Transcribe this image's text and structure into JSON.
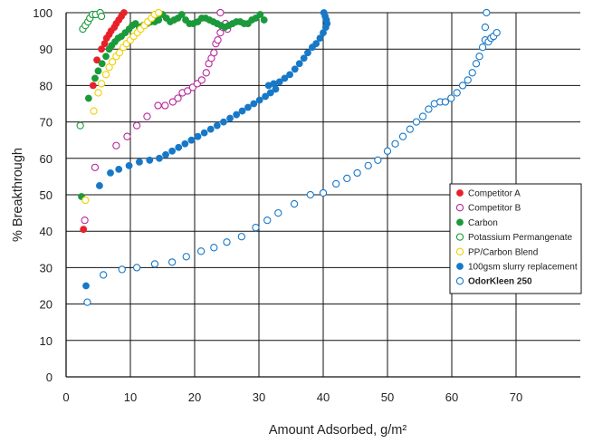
{
  "chart_data": {
    "type": "scatter",
    "xlabel": "Amount Adsorbed, g/m²",
    "ylabel": "% Breakthrough",
    "xlim": [
      0,
      80
    ],
    "ylim": [
      0,
      100
    ],
    "x_ticks": [
      0,
      10,
      20,
      30,
      40,
      50,
      60,
      70
    ],
    "y_ticks": [
      0,
      10,
      20,
      30,
      40,
      50,
      60,
      70,
      80,
      90,
      100
    ],
    "grid": true,
    "legend_position": "right-middle",
    "series": [
      {
        "name": "Competitor A",
        "color": "#e8202a",
        "filled": true,
        "bold": false,
        "points": [
          [
            2.7,
            40.5
          ],
          [
            4.2,
            80
          ],
          [
            4.8,
            87
          ],
          [
            5.5,
            90
          ],
          [
            6,
            91.5
          ],
          [
            6.3,
            93
          ],
          [
            6.7,
            94
          ],
          [
            7,
            95
          ],
          [
            7.5,
            96
          ],
          [
            7.8,
            97
          ],
          [
            8.2,
            98
          ],
          [
            8.6,
            99
          ],
          [
            9,
            100
          ]
        ]
      },
      {
        "name": "Competitor B",
        "color": "#b8279a",
        "filled": false,
        "bold": false,
        "points": [
          [
            2.9,
            43
          ],
          [
            4.5,
            57.5
          ],
          [
            7.8,
            63.5
          ],
          [
            9.5,
            66
          ],
          [
            11,
            69
          ],
          [
            12.6,
            71.5
          ],
          [
            14.3,
            74.5
          ],
          [
            15.4,
            74.5
          ],
          [
            16.6,
            75.5
          ],
          [
            17.4,
            76.5
          ],
          [
            18.1,
            78
          ],
          [
            18.9,
            78.5
          ],
          [
            19.7,
            79.5
          ],
          [
            20.4,
            80.5
          ],
          [
            21.1,
            81.5
          ],
          [
            21.8,
            83.5
          ],
          [
            22.2,
            86
          ],
          [
            22.6,
            87.5
          ],
          [
            23,
            89
          ],
          [
            23.3,
            91.5
          ],
          [
            23.6,
            92.5
          ],
          [
            24,
            94.5
          ],
          [
            24.4,
            96
          ],
          [
            24.8,
            97
          ],
          [
            25.1,
            95.5
          ],
          [
            24,
            100
          ]
        ]
      },
      {
        "name": "Carbon",
        "color": "#1a9a3a",
        "filled": true,
        "bold": false,
        "points": [
          [
            2.4,
            49.5
          ],
          [
            3.5,
            76.5
          ],
          [
            4.5,
            82
          ],
          [
            5,
            84
          ],
          [
            5.6,
            86
          ],
          [
            6.2,
            88
          ],
          [
            6.7,
            90
          ],
          [
            7.1,
            91
          ],
          [
            7.6,
            92
          ],
          [
            8.1,
            93
          ],
          [
            8.6,
            93.5
          ],
          [
            9.2,
            94.5
          ],
          [
            9.8,
            95.5
          ],
          [
            10.3,
            96.5
          ],
          [
            10.8,
            97
          ],
          [
            11.4,
            96
          ],
          [
            12,
            96.5
          ],
          [
            12.6,
            97
          ],
          [
            13.2,
            97.5
          ],
          [
            13.8,
            97.5
          ],
          [
            14.4,
            98
          ],
          [
            15,
            99.5
          ],
          [
            15.6,
            98.5
          ],
          [
            16.2,
            97.5
          ],
          [
            16.8,
            98
          ],
          [
            17.4,
            98.5
          ],
          [
            18,
            99.5
          ],
          [
            18.6,
            98
          ],
          [
            19.2,
            97
          ],
          [
            19.8,
            97
          ],
          [
            20.5,
            97.5
          ],
          [
            21.1,
            98.5
          ],
          [
            21.7,
            98.5
          ],
          [
            22.3,
            98
          ],
          [
            22.9,
            97.5
          ],
          [
            23.5,
            97
          ],
          [
            24.1,
            96.5
          ],
          [
            24.7,
            96
          ],
          [
            25.3,
            96.5
          ],
          [
            25.9,
            97
          ],
          [
            26.5,
            97.5
          ],
          [
            27.1,
            97.5
          ],
          [
            27.7,
            97
          ],
          [
            28.3,
            97
          ],
          [
            28.9,
            98
          ],
          [
            29.5,
            98.5
          ],
          [
            30.2,
            99.5
          ],
          [
            30.8,
            98
          ]
        ]
      },
      {
        "name": "Potassium Permangenate",
        "color": "#1a9a3a",
        "filled": false,
        "bold": false,
        "points": [
          [
            2.2,
            69
          ],
          [
            2.6,
            95.5
          ],
          [
            3,
            96.5
          ],
          [
            3.4,
            97.5
          ],
          [
            3.7,
            98.5
          ],
          [
            4.1,
            99.5
          ],
          [
            4.6,
            99.5
          ],
          [
            5.3,
            100
          ],
          [
            5.5,
            99
          ]
        ]
      },
      {
        "name": "PP/Carbon Blend",
        "color": "#f0d000",
        "filled": false,
        "bold": false,
        "points": [
          [
            3,
            48.5
          ],
          [
            4.3,
            73
          ],
          [
            5,
            78
          ],
          [
            5.5,
            80.5
          ],
          [
            6.2,
            83
          ],
          [
            6.7,
            85
          ],
          [
            7.2,
            86.5
          ],
          [
            7.8,
            88
          ],
          [
            8.3,
            89
          ],
          [
            8.9,
            90.5
          ],
          [
            9.4,
            91.5
          ],
          [
            10,
            92.5
          ],
          [
            10.5,
            93.5
          ],
          [
            11.1,
            94.5
          ],
          [
            11.6,
            95.5
          ],
          [
            12.2,
            96.5
          ],
          [
            12.7,
            97.5
          ],
          [
            13.3,
            98.5
          ],
          [
            13.8,
            99.5
          ],
          [
            14.4,
            100
          ]
        ]
      },
      {
        "name": "100gsm slurry replacement",
        "color": "#1878c8",
        "filled": true,
        "bold": false,
        "points": [
          [
            3.1,
            25
          ],
          [
            5.2,
            52.5
          ],
          [
            6.9,
            56
          ],
          [
            8.2,
            57
          ],
          [
            9.8,
            58
          ],
          [
            11.4,
            59
          ],
          [
            13,
            59.5
          ],
          [
            14.5,
            60
          ],
          [
            15.5,
            61
          ],
          [
            16.5,
            62
          ],
          [
            17.5,
            63
          ],
          [
            18.5,
            64
          ],
          [
            19.5,
            65
          ],
          [
            20.5,
            66
          ],
          [
            21.5,
            67
          ],
          [
            22.5,
            68
          ],
          [
            23.5,
            69
          ],
          [
            24.5,
            70
          ],
          [
            25.5,
            71
          ],
          [
            26.5,
            72
          ],
          [
            27.4,
            73
          ],
          [
            28.3,
            74
          ],
          [
            29.2,
            75
          ],
          [
            30.1,
            76
          ],
          [
            31,
            77
          ],
          [
            31.8,
            78
          ],
          [
            32.6,
            79
          ],
          [
            31.5,
            80
          ],
          [
            32.3,
            80.5
          ],
          [
            33.2,
            81
          ],
          [
            34,
            82
          ],
          [
            34.8,
            83
          ],
          [
            35.6,
            84.5
          ],
          [
            36.3,
            86
          ],
          [
            37,
            87.5
          ],
          [
            37.6,
            89
          ],
          [
            38.3,
            90.5
          ],
          [
            38.9,
            91.5
          ],
          [
            39.5,
            93
          ],
          [
            40,
            94.5
          ],
          [
            40.4,
            96
          ],
          [
            40.6,
            97
          ],
          [
            40.5,
            98
          ],
          [
            40.3,
            99
          ],
          [
            40.1,
            100
          ]
        ]
      },
      {
        "name": "OdorKleen 250",
        "color": "#1878c8",
        "filled": false,
        "bold": true,
        "points": [
          [
            3.3,
            20.5
          ],
          [
            5.8,
            28
          ],
          [
            8.7,
            29.5
          ],
          [
            11,
            30
          ],
          [
            13.8,
            31
          ],
          [
            16.5,
            31.5
          ],
          [
            18.7,
            33
          ],
          [
            21,
            34.5
          ],
          [
            23,
            35.5
          ],
          [
            25,
            37
          ],
          [
            27.3,
            38.5
          ],
          [
            29.5,
            41
          ],
          [
            31.3,
            43
          ],
          [
            33,
            45
          ],
          [
            35.5,
            47.5
          ],
          [
            38,
            50
          ],
          [
            40,
            50.5
          ],
          [
            42,
            53
          ],
          [
            43.7,
            54.5
          ],
          [
            45.3,
            56
          ],
          [
            47,
            58
          ],
          [
            48.5,
            59.5
          ],
          [
            50,
            62
          ],
          [
            51.2,
            64
          ],
          [
            52.4,
            66
          ],
          [
            53.5,
            68
          ],
          [
            54.5,
            70
          ],
          [
            55.5,
            71.5
          ],
          [
            56.4,
            73.5
          ],
          [
            57.3,
            75
          ],
          [
            58.2,
            75.5
          ],
          [
            59,
            75.5
          ],
          [
            59.9,
            76.5
          ],
          [
            60.8,
            78
          ],
          [
            61.7,
            80
          ],
          [
            62.5,
            81.5
          ],
          [
            63.2,
            83.5
          ],
          [
            63.8,
            86
          ],
          [
            64.3,
            88
          ],
          [
            64.8,
            90.5
          ],
          [
            65.2,
            92.5
          ],
          [
            65.7,
            92
          ],
          [
            66.1,
            93
          ],
          [
            66.5,
            93.5
          ],
          [
            67,
            94.5
          ],
          [
            65.2,
            96
          ],
          [
            65.4,
            100
          ]
        ]
      }
    ]
  }
}
